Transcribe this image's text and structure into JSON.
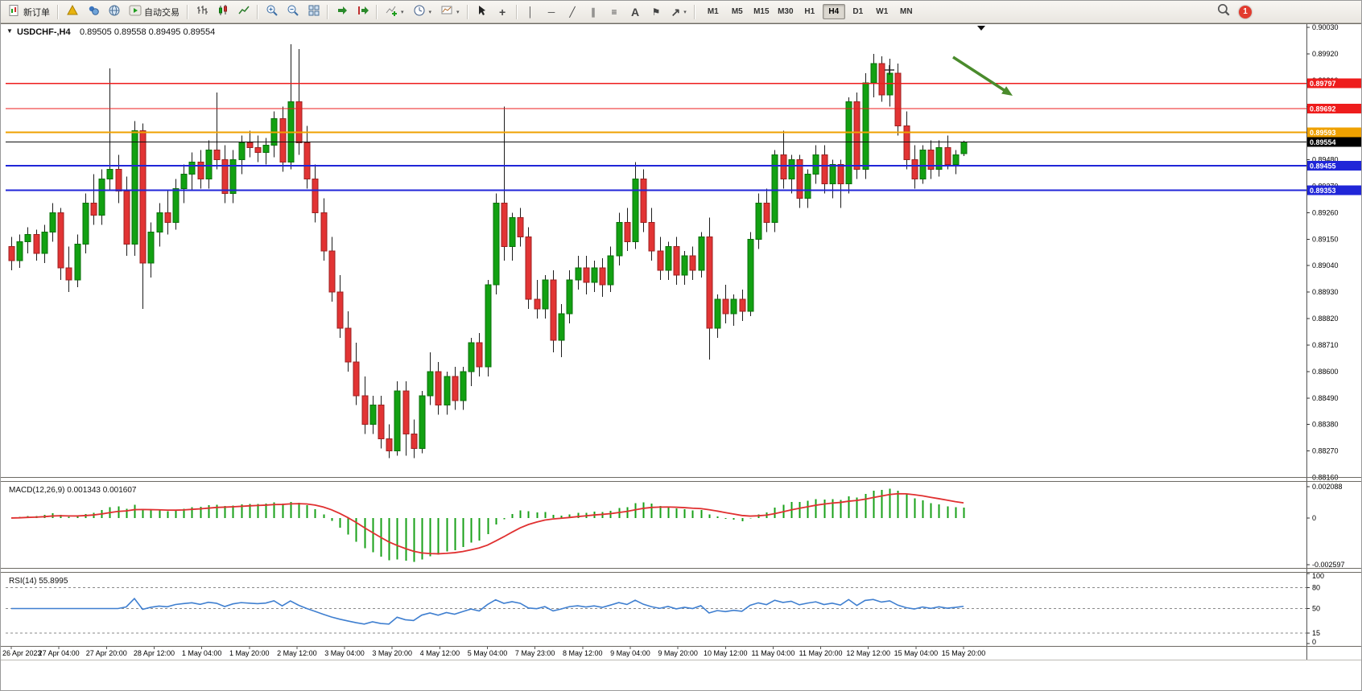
{
  "toolbar": {
    "new_order": "新订单",
    "autotrading": "自动交易",
    "timeframes": [
      "M1",
      "M5",
      "M15",
      "M30",
      "H1",
      "H4",
      "D1",
      "W1",
      "MN"
    ],
    "active_timeframe": "H4",
    "notification_count": "1"
  },
  "icons": {
    "collapse_arrow": "▼",
    "dropdown_arrow": "▾",
    "crosshair": "+",
    "vertical_line": "│",
    "horizontal_line": "─",
    "trendline": "╱",
    "channel": "∥",
    "fibonacci": "≡",
    "text_tool": "A",
    "text_label": "⚑",
    "arrows_tool": "↗"
  },
  "chart": {
    "title": "USDCHF-,H4",
    "ohlc_text": "0.89505 0.89558 0.89495 0.89554",
    "macd_label": "MACD(12,26,9) 0.001343 0.001607",
    "rsi_label": "RSI(14) 55.8995"
  },
  "chart_data": {
    "type": "candlestick",
    "symbol": "USDCHF",
    "timeframe": "H4",
    "price_range": {
      "max": 0.9004,
      "min": 0.88165
    },
    "price_axis_ticks": [
      "0.90030",
      "0.89920",
      "0.89810",
      "0.89700",
      "0.89590",
      "0.89480",
      "0.89370",
      "0.89260",
      "0.89150",
      "0.89040",
      "0.88930",
      "0.88820",
      "0.88710",
      "0.88600",
      "0.88490",
      "0.88380",
      "0.88270",
      "0.88160"
    ],
    "hlines": [
      {
        "price": 0.89797,
        "label": "0.89797",
        "color": "#ee1c1c",
        "width": 1.2
      },
      {
        "price": 0.89692,
        "label": "0.89692",
        "color": "#ee1c1c",
        "width": 1.2
      },
      {
        "price": 0.89593,
        "label": "0.89593",
        "color": "#efa100",
        "width": 2
      },
      {
        "price": 0.89455,
        "label": "0.89455",
        "color": "#2026d8",
        "width": 2
      },
      {
        "price": 0.89353,
        "label": "0.89353",
        "color": "#2026d8",
        "width": 2
      }
    ],
    "current_price": {
      "price": 0.89554,
      "label": "0.89554",
      "color": "#111111"
    },
    "candles": [
      [
        0.8912,
        0.8916,
        0.8902,
        0.8906
      ],
      [
        0.8906,
        0.8917,
        0.8903,
        0.8914
      ],
      [
        0.8914,
        0.892,
        0.8909,
        0.8917
      ],
      [
        0.8917,
        0.8919,
        0.8906,
        0.8909
      ],
      [
        0.8909,
        0.8921,
        0.8905,
        0.8918
      ],
      [
        0.8918,
        0.893,
        0.8914,
        0.8926
      ],
      [
        0.8926,
        0.8928,
        0.8898,
        0.8903
      ],
      [
        0.8903,
        0.8912,
        0.8893,
        0.8898
      ],
      [
        0.8898,
        0.8917,
        0.8895,
        0.8913
      ],
      [
        0.8913,
        0.8934,
        0.8909,
        0.893
      ],
      [
        0.893,
        0.8942,
        0.8921,
        0.8925
      ],
      [
        0.8925,
        0.8944,
        0.8921,
        0.894
      ],
      [
        0.894,
        0.8986,
        0.8935,
        0.8944
      ],
      [
        0.8944,
        0.895,
        0.893,
        0.8935
      ],
      [
        0.8935,
        0.8941,
        0.8908,
        0.8913
      ],
      [
        0.8913,
        0.8964,
        0.8908,
        0.896
      ],
      [
        0.896,
        0.8963,
        0.8886,
        0.8905
      ],
      [
        0.8905,
        0.8922,
        0.8899,
        0.8918
      ],
      [
        0.8918,
        0.893,
        0.8912,
        0.8926
      ],
      [
        0.8926,
        0.8935,
        0.8917,
        0.8922
      ],
      [
        0.8922,
        0.894,
        0.8919,
        0.8936
      ],
      [
        0.8936,
        0.8946,
        0.893,
        0.8942
      ],
      [
        0.8942,
        0.8951,
        0.8935,
        0.8947
      ],
      [
        0.8947,
        0.8952,
        0.8936,
        0.894
      ],
      [
        0.894,
        0.8956,
        0.8936,
        0.8952
      ],
      [
        0.8952,
        0.8976,
        0.8944,
        0.8948
      ],
      [
        0.8948,
        0.8954,
        0.893,
        0.8934
      ],
      [
        0.8934,
        0.8952,
        0.893,
        0.8948
      ],
      [
        0.8948,
        0.8958,
        0.8942,
        0.8955
      ],
      [
        0.8955,
        0.896,
        0.8949,
        0.8953
      ],
      [
        0.8953,
        0.8958,
        0.8947,
        0.8951
      ],
      [
        0.8951,
        0.8957,
        0.8946,
        0.8954
      ],
      [
        0.8954,
        0.8968,
        0.8949,
        0.8965
      ],
      [
        0.8965,
        0.897,
        0.8943,
        0.8947
      ],
      [
        0.8947,
        0.8996,
        0.8944,
        0.8972
      ],
      [
        0.8972,
        0.8994,
        0.895,
        0.8955
      ],
      [
        0.8955,
        0.8962,
        0.8936,
        0.894
      ],
      [
        0.894,
        0.8946,
        0.8922,
        0.8926
      ],
      [
        0.8926,
        0.8932,
        0.8906,
        0.891
      ],
      [
        0.891,
        0.8916,
        0.8889,
        0.8893
      ],
      [
        0.8893,
        0.89,
        0.8874,
        0.8878
      ],
      [
        0.8878,
        0.8885,
        0.886,
        0.8864
      ],
      [
        0.8864,
        0.8872,
        0.8846,
        0.885
      ],
      [
        0.885,
        0.8858,
        0.8834,
        0.8838
      ],
      [
        0.8838,
        0.885,
        0.8834,
        0.8846
      ],
      [
        0.8846,
        0.885,
        0.8828,
        0.8832
      ],
      [
        0.8832,
        0.8838,
        0.8824,
        0.8827
      ],
      [
        0.8827,
        0.8856,
        0.8825,
        0.8852
      ],
      [
        0.8852,
        0.8856,
        0.8825,
        0.8834
      ],
      [
        0.8834,
        0.884,
        0.8824,
        0.8828
      ],
      [
        0.8828,
        0.8852,
        0.8826,
        0.885
      ],
      [
        0.885,
        0.8868,
        0.8846,
        0.886
      ],
      [
        0.886,
        0.8864,
        0.8842,
        0.8846
      ],
      [
        0.8846,
        0.886,
        0.8842,
        0.8858
      ],
      [
        0.8858,
        0.8862,
        0.8844,
        0.8848
      ],
      [
        0.8848,
        0.8862,
        0.8844,
        0.886
      ],
      [
        0.886,
        0.8874,
        0.8854,
        0.8872
      ],
      [
        0.8872,
        0.8876,
        0.8858,
        0.8862
      ],
      [
        0.8862,
        0.8898,
        0.8858,
        0.8896
      ],
      [
        0.8896,
        0.8934,
        0.8892,
        0.893
      ],
      [
        0.893,
        0.897,
        0.8906,
        0.8912
      ],
      [
        0.8912,
        0.8926,
        0.8906,
        0.8924
      ],
      [
        0.8924,
        0.8928,
        0.8912,
        0.8916
      ],
      [
        0.8916,
        0.892,
        0.8886,
        0.889
      ],
      [
        0.889,
        0.8898,
        0.8882,
        0.8886
      ],
      [
        0.8886,
        0.89,
        0.8882,
        0.8898
      ],
      [
        0.8898,
        0.8902,
        0.8868,
        0.8873
      ],
      [
        0.8873,
        0.8888,
        0.8866,
        0.8884
      ],
      [
        0.8884,
        0.8902,
        0.888,
        0.8898
      ],
      [
        0.8898,
        0.8908,
        0.8894,
        0.8903
      ],
      [
        0.8903,
        0.8908,
        0.8892,
        0.8897
      ],
      [
        0.8897,
        0.8906,
        0.8893,
        0.8903
      ],
      [
        0.8903,
        0.8907,
        0.8891,
        0.8896
      ],
      [
        0.8896,
        0.8912,
        0.8893,
        0.8908
      ],
      [
        0.8908,
        0.8926,
        0.8904,
        0.8922
      ],
      [
        0.8922,
        0.8928,
        0.891,
        0.8914
      ],
      [
        0.8914,
        0.8947,
        0.8911,
        0.894
      ],
      [
        0.894,
        0.8944,
        0.8918,
        0.8922
      ],
      [
        0.8922,
        0.8928,
        0.8906,
        0.891
      ],
      [
        0.891,
        0.8916,
        0.8898,
        0.8902
      ],
      [
        0.8902,
        0.8914,
        0.8898,
        0.8912
      ],
      [
        0.8912,
        0.8916,
        0.8896,
        0.89
      ],
      [
        0.89,
        0.891,
        0.8896,
        0.8908
      ],
      [
        0.8908,
        0.8912,
        0.8898,
        0.8902
      ],
      [
        0.8902,
        0.8918,
        0.8899,
        0.8916
      ],
      [
        0.8916,
        0.8924,
        0.8865,
        0.8878
      ],
      [
        0.8878,
        0.8892,
        0.8874,
        0.889
      ],
      [
        0.889,
        0.8896,
        0.888,
        0.8884
      ],
      [
        0.8884,
        0.8892,
        0.8879,
        0.889
      ],
      [
        0.889,
        0.8894,
        0.8881,
        0.8885
      ],
      [
        0.8885,
        0.8918,
        0.8883,
        0.8915
      ],
      [
        0.8915,
        0.8934,
        0.8911,
        0.893
      ],
      [
        0.893,
        0.8936,
        0.8918,
        0.8922
      ],
      [
        0.8922,
        0.8952,
        0.8918,
        0.895
      ],
      [
        0.895,
        0.896,
        0.8936,
        0.894
      ],
      [
        0.894,
        0.895,
        0.8934,
        0.8948
      ],
      [
        0.8948,
        0.895,
        0.8928,
        0.8932
      ],
      [
        0.8932,
        0.8944,
        0.8928,
        0.8942
      ],
      [
        0.8942,
        0.8954,
        0.8938,
        0.895
      ],
      [
        0.895,
        0.8954,
        0.8934,
        0.8938
      ],
      [
        0.8938,
        0.8948,
        0.8932,
        0.8946
      ],
      [
        0.8946,
        0.8948,
        0.8928,
        0.8938
      ],
      [
        0.8938,
        0.8974,
        0.8934,
        0.8972
      ],
      [
        0.8972,
        0.8976,
        0.894,
        0.8944
      ],
      [
        0.8944,
        0.8984,
        0.894,
        0.898
      ],
      [
        0.898,
        0.8992,
        0.8974,
        0.8988
      ],
      [
        0.8988,
        0.8991,
        0.8972,
        0.8975
      ],
      [
        0.8975,
        0.899,
        0.897,
        0.8984
      ],
      [
        0.8984,
        0.8988,
        0.8958,
        0.8962
      ],
      [
        0.8962,
        0.8968,
        0.8944,
        0.8948
      ],
      [
        0.8948,
        0.8954,
        0.8936,
        0.894
      ],
      [
        0.894,
        0.8954,
        0.8938,
        0.8952
      ],
      [
        0.8952,
        0.8956,
        0.894,
        0.8944
      ],
      [
        0.8944,
        0.8956,
        0.8941,
        0.8953
      ],
      [
        0.8953,
        0.8958,
        0.8944,
        0.8946
      ],
      [
        0.8946,
        0.8952,
        0.8942,
        0.895
      ],
      [
        0.89505,
        0.89558,
        0.89495,
        0.89554
      ]
    ],
    "time_labels": [
      "26 Apr 2023",
      "27 Apr 04:00",
      "27 Apr 20:00",
      "28 Apr 12:00",
      "1 May 04:00",
      "1 May 20:00",
      "2 May 12:00",
      "3 May 04:00",
      "3 May 20:00",
      "4 May 12:00",
      "5 May 04:00",
      "7 May 23:00",
      "8 May 12:00",
      "9 May 04:00",
      "9 May 20:00",
      "10 May 12:00",
      "11 May 04:00",
      "11 May 20:00",
      "12 May 12:00",
      "15 May 04:00",
      "15 May 20:00"
    ],
    "macd": {
      "params": "12,26,9",
      "axis_labels": [
        "0.002088",
        "0",
        "-0.002597"
      ]
    },
    "rsi": {
      "period": 14,
      "levels": [
        80,
        50,
        15
      ],
      "axis_labels": [
        "100",
        "80",
        "50",
        "15",
        "0"
      ]
    },
    "colors": {
      "up": "#12a112",
      "up_border": "#0a700a",
      "down": "#e23434",
      "down_border": "#9c2020",
      "wick": "#1d1d1d",
      "macd_histogram": "#18a018",
      "macd_signal": "#e03030",
      "rsi_line": "#3f7fd0",
      "annotation_arrow": "#4a8b2c"
    },
    "annotations": [
      {
        "type": "arrow",
        "from": [
          1183,
          42
        ],
        "to": [
          1257,
          90
        ]
      },
      {
        "type": "plus",
        "at": [
          1104,
          58
        ]
      },
      {
        "type": "marker",
        "at": [
          1218,
          3
        ]
      }
    ]
  }
}
